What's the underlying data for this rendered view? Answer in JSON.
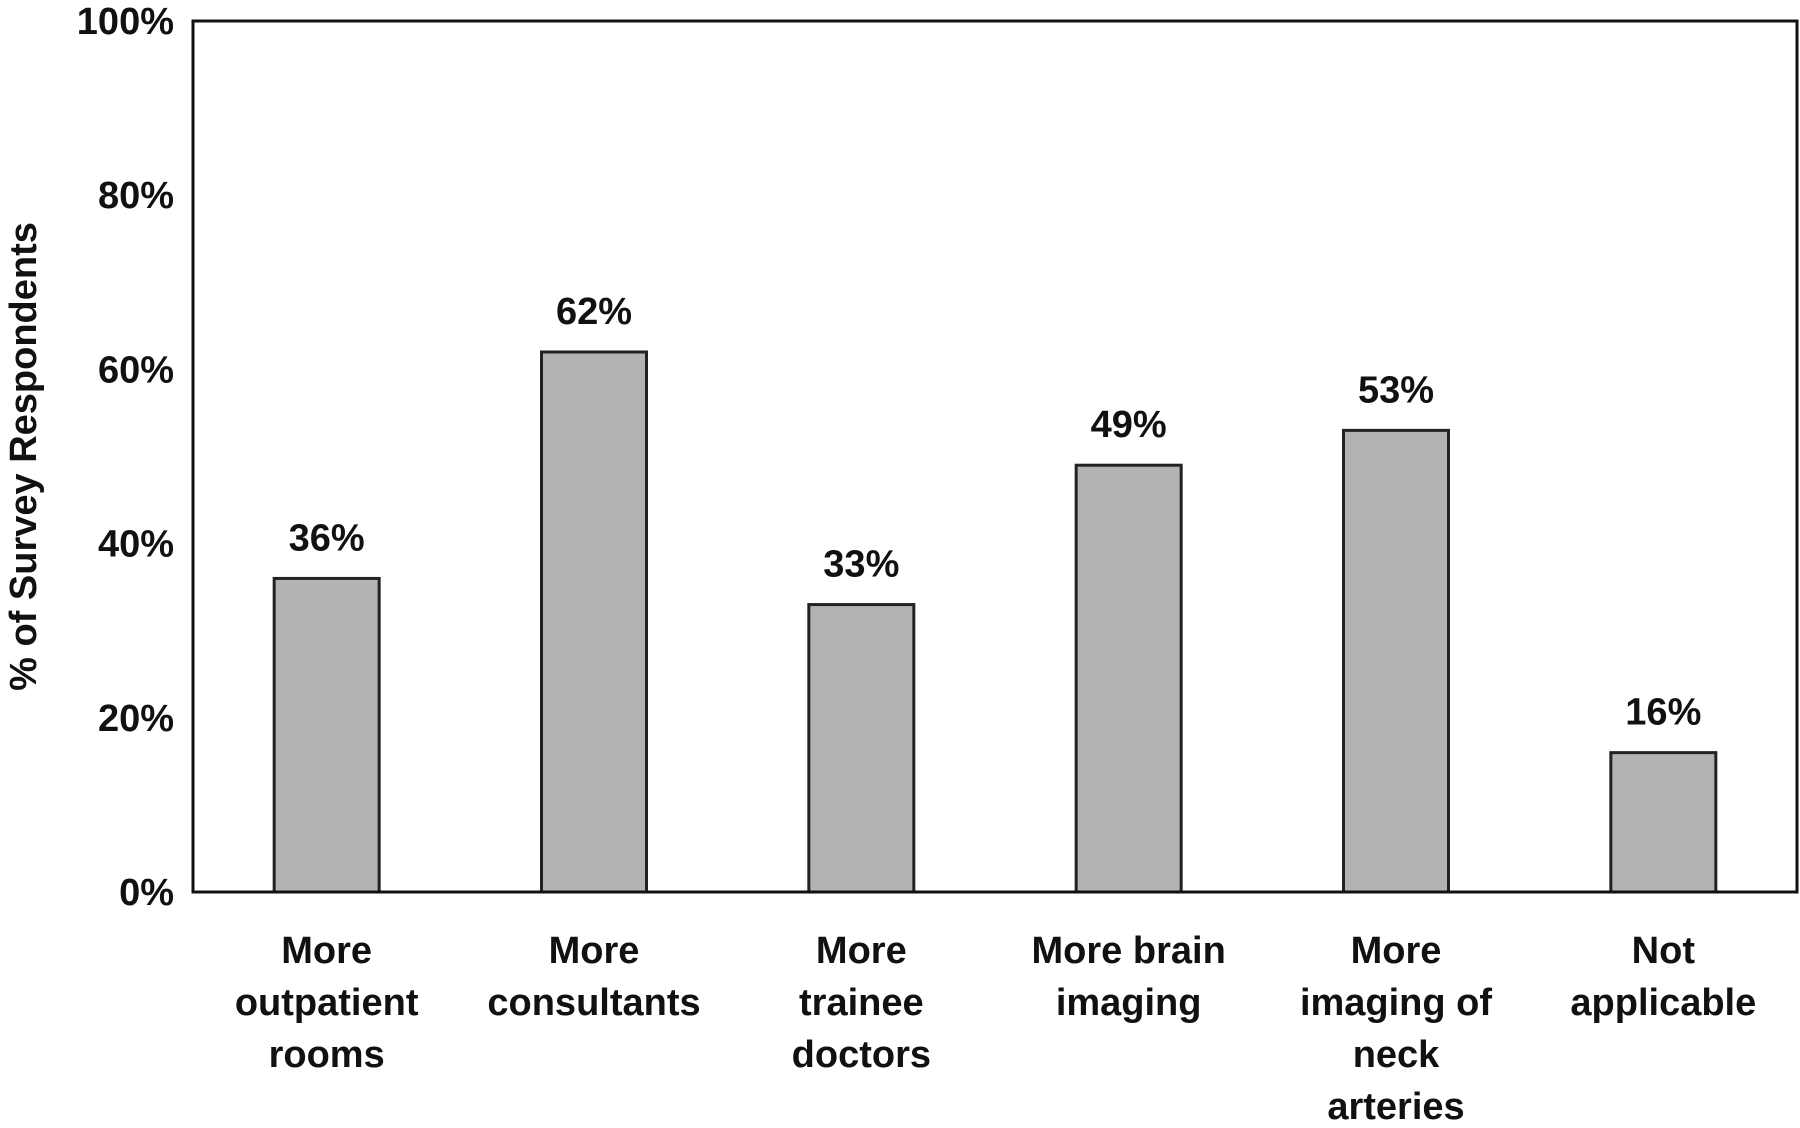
{
  "chart_data": {
    "type": "bar",
    "title": "",
    "xlabel": "",
    "ylabel": "% of Survey Respondents",
    "ylim": [
      0,
      100
    ],
    "yticks": [
      "0%",
      "20%",
      "40%",
      "60%",
      "80%",
      "100%"
    ],
    "grid": false,
    "legend": "none",
    "categories": [
      [
        "More",
        "outpatient",
        "rooms"
      ],
      [
        "More",
        "consultants"
      ],
      [
        "More",
        "trainee",
        "doctors"
      ],
      [
        "More brain",
        "imaging"
      ],
      [
        "More",
        "imaging of",
        "neck",
        "arteries"
      ],
      [
        "Not",
        "applicable"
      ]
    ],
    "values": [
      36,
      62,
      33,
      49,
      53,
      16
    ],
    "data_labels": [
      "36%",
      "62%",
      "33%",
      "49%",
      "53%",
      "16%"
    ],
    "bar_color": "#b3b3b3",
    "bar_edge_color": "#222222"
  }
}
